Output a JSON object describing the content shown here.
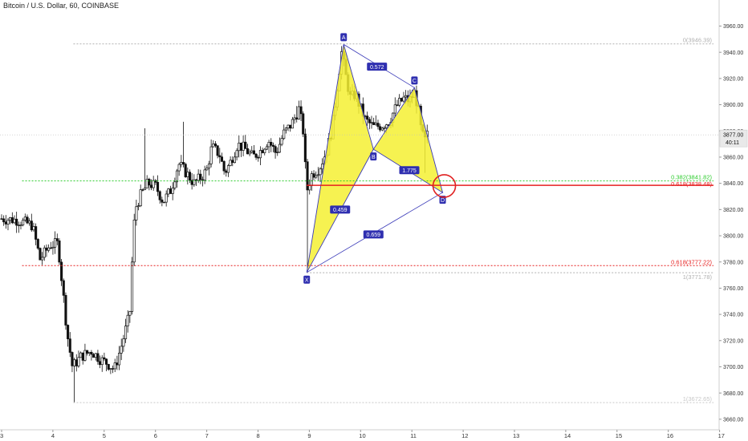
{
  "header": {
    "title": "Bitcoin / U.S. Dollar, 60, COINBASE"
  },
  "colors": {
    "candle": "#111111",
    "pattern_fill": "#f4f032",
    "pattern_line": "#3a3ab8",
    "green_level": "#2ecc2e",
    "red_level": "#e62020",
    "grey_level": "#b0b0b0",
    "highlight_circle": "#e02020",
    "price_tag_bg": "#e9e9e9"
  },
  "price_tag": {
    "value": "3877.00",
    "countdown": "40:11"
  },
  "chart_data": {
    "type": "candlestick",
    "symbol": "Bitcoin / U.S. Dollar",
    "interval": "60",
    "exchange": "COINBASE",
    "ylim": [
      3655,
      3970
    ],
    "y_ticks": [
      3660,
      3680,
      3700,
      3720,
      3740,
      3760,
      3780,
      3800,
      3820,
      3840,
      3860,
      3880,
      3900,
      3920,
      3940,
      3960
    ],
    "y_tick_labels": [
      "3660.00",
      "3680.00",
      "3700.00",
      "3720.00",
      "3740.00",
      "3760.00",
      "3780.00",
      "3800.00",
      "3820.00",
      "3840.00",
      "3860.00",
      "3880.00",
      "3900.00",
      "3920.00",
      "3940.00",
      "3960.00"
    ],
    "x_range": [
      3,
      17
    ],
    "x_ticks": [
      3,
      4,
      5,
      6,
      7,
      8,
      9,
      10,
      11,
      12,
      13,
      14,
      15,
      16,
      17
    ],
    "x_tick_labels": [
      "3",
      "4",
      "5",
      "6",
      "7",
      "8",
      "9",
      "10",
      "11",
      "12",
      "13",
      "14",
      "15",
      "16",
      "17"
    ],
    "close_path": [
      [
        3.0,
        3813
      ],
      [
        3.3,
        3812
      ],
      [
        3.6,
        3808
      ],
      [
        3.75,
        3782
      ],
      [
        3.95,
        3793
      ],
      [
        4.1,
        3794
      ],
      [
        4.2,
        3756
      ],
      [
        4.28,
        3725
      ],
      [
        4.38,
        3700
      ],
      [
        4.55,
        3708
      ],
      [
        4.75,
        3712
      ],
      [
        4.95,
        3705
      ],
      [
        5.05,
        3703
      ],
      [
        5.2,
        3698
      ],
      [
        5.35,
        3718
      ],
      [
        5.5,
        3741
      ],
      [
        5.55,
        3785
      ],
      [
        5.6,
        3820
      ],
      [
        5.7,
        3830
      ],
      [
        5.85,
        3840
      ],
      [
        6.0,
        3838
      ],
      [
        6.15,
        3826
      ],
      [
        6.3,
        3835
      ],
      [
        6.45,
        3855
      ],
      [
        6.6,
        3848
      ],
      [
        6.75,
        3840
      ],
      [
        6.9,
        3845
      ],
      [
        7.0,
        3850
      ],
      [
        7.1,
        3868
      ],
      [
        7.25,
        3862
      ],
      [
        7.35,
        3848
      ],
      [
        7.45,
        3855
      ],
      [
        7.6,
        3870
      ],
      [
        7.75,
        3866
      ],
      [
        7.9,
        3860
      ],
      [
        8.05,
        3865
      ],
      [
        8.2,
        3873
      ],
      [
        8.35,
        3863
      ],
      [
        8.5,
        3878
      ],
      [
        8.65,
        3885
      ],
      [
        8.8,
        3897
      ],
      [
        8.88,
        3880
      ],
      [
        8.95,
        3834
      ],
      [
        9.05,
        3847
      ],
      [
        9.2,
        3852
      ],
      [
        9.35,
        3866
      ],
      [
        9.45,
        3883
      ],
      [
        9.55,
        3915
      ],
      [
        9.63,
        3940
      ],
      [
        9.72,
        3920
      ],
      [
        9.8,
        3905
      ],
      [
        9.9,
        3908
      ],
      [
        10.0,
        3897
      ],
      [
        10.1,
        3888
      ],
      [
        10.25,
        3883
      ],
      [
        10.4,
        3884
      ],
      [
        10.55,
        3887
      ],
      [
        10.7,
        3899
      ],
      [
        10.85,
        3905
      ],
      [
        10.95,
        3903
      ],
      [
        11.05,
        3909
      ],
      [
        11.12,
        3898
      ],
      [
        11.18,
        3880
      ],
      [
        11.25,
        3872
      ],
      [
        11.3,
        3877
      ]
    ],
    "harmonic_pattern": {
      "points": [
        {
          "label": "X",
          "x": 8.95,
          "y": 3772
        },
        {
          "label": "A",
          "x": 9.67,
          "y": 3946
        },
        {
          "label": "B",
          "x": 10.25,
          "y": 3866
        },
        {
          "label": "C",
          "x": 11.05,
          "y": 3913
        },
        {
          "label": "D",
          "x": 11.6,
          "y": 3833
        }
      ],
      "ratios": [
        {
          "label": "0.459",
          "x": 9.6,
          "y": 3820
        },
        {
          "label": "0.572",
          "x": 10.32,
          "y": 3929
        },
        {
          "label": "1.775",
          "x": 10.95,
          "y": 3850
        },
        {
          "label": "0.659",
          "x": 10.25,
          "y": 3801
        }
      ]
    },
    "fib_levels": [
      {
        "label": "0(3946.39)",
        "value": 3946.39,
        "color": "#b0b0b0",
        "style": "dotted",
        "x_start": 4.4
      },
      {
        "label": "0.382(3841.82)",
        "value": 3841.82,
        "color": "#2ecc2e",
        "style": "dotted",
        "x_start": 3.4
      },
      {
        "label": "0.618(3838.48)",
        "value": 3838.48,
        "color": "#e62020",
        "style": "solid",
        "x_start": 8.95
      },
      {
        "label": "0.618(3777.22)",
        "value": 3777.22,
        "color": "#e62020",
        "style": "dotted",
        "x_start": 3.4
      },
      {
        "label": "1(3771.78)",
        "value": 3771.78,
        "color": "#b0b0b0",
        "style": "dotted",
        "x_start": 8.95
      },
      {
        "label": "1(3672.65)",
        "value": 3672.65,
        "color": "#c8c8c8",
        "style": "dotted",
        "x_start": 4.4
      }
    ],
    "highlight": {
      "x": 11.6,
      "y": 3838
    }
  }
}
